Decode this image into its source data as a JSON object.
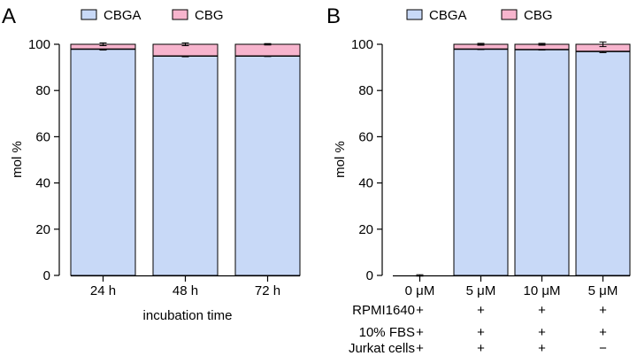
{
  "figure": {
    "panel_a_letter": "A",
    "panel_b_letter": "B"
  },
  "colors": {
    "CBGA": "#c8d9f7",
    "CBG": "#f7b4cd",
    "stroke": "#000000"
  },
  "chart_data": [
    {
      "type": "bar",
      "stacked": true,
      "panel": "A",
      "categories": [
        "24 h",
        "48 h",
        "72 h"
      ],
      "series": [
        {
          "name": "CBGA",
          "values": [
            98,
            95,
            95
          ],
          "error": [
            0.5,
            0.4,
            0.3
          ]
        },
        {
          "name": "CBG",
          "values": [
            2,
            5,
            5
          ],
          "error": [
            0.6,
            0.6,
            0.3
          ]
        }
      ],
      "xlabel": "incubation time",
      "ylabel": "mol %",
      "ylim": [
        0,
        100
      ],
      "yticks": [
        0,
        20,
        40,
        60,
        80,
        100
      ],
      "legend": "top",
      "grid": false
    },
    {
      "type": "bar",
      "stacked": true,
      "panel": "B",
      "categories": [
        "0 μM",
        "5 μM",
        "10 μM",
        "5 μM"
      ],
      "series": [
        {
          "name": "CBGA",
          "values": [
            0,
            98,
            97.8,
            97
          ],
          "error": [
            0,
            0.3,
            0.3,
            0.6
          ]
        },
        {
          "name": "CBG",
          "values": [
            0,
            2,
            2.2,
            3
          ],
          "error": [
            0.3,
            0.4,
            0.4,
            1.0
          ]
        }
      ],
      "ylabel": "mol %",
      "ylim": [
        0,
        100
      ],
      "yticks": [
        0,
        20,
        40,
        60,
        80,
        100
      ],
      "legend": "top",
      "grid": false,
      "conditions": [
        {
          "label": "RPMI1640",
          "marks": [
            "+",
            "+",
            "+",
            "+"
          ]
        },
        {
          "label": "10% FBS",
          "marks": [
            "+",
            "+",
            "+",
            "+"
          ]
        },
        {
          "label": "Jurkat cells",
          "marks": [
            "+",
            "+",
            "+",
            "−"
          ]
        }
      ]
    }
  ]
}
